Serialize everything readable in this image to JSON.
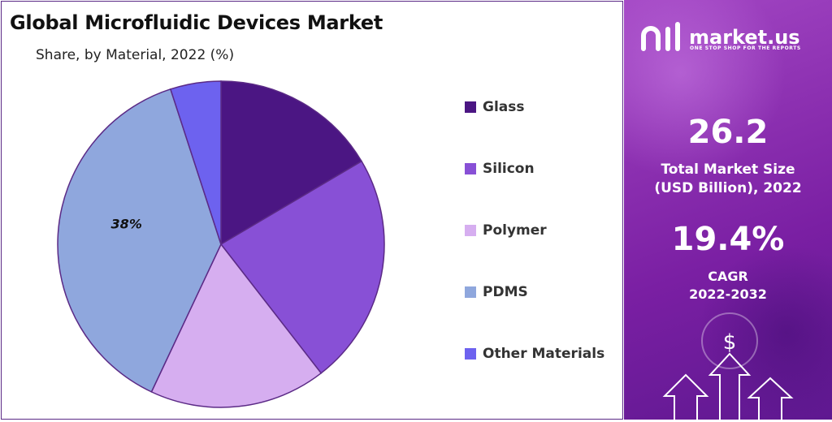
{
  "chart_data": {
    "type": "pie",
    "title": "Global Microfluidic Devices Market",
    "subtitle": "Share, by Material, 2022 (%)",
    "categories": [
      "Glass",
      "Silicon",
      "Polymer",
      "PDMS",
      "Other Materials"
    ],
    "values": [
      16.5,
      23.0,
      17.5,
      38.0,
      5.0
    ],
    "data_labels": [
      "",
      "",
      "",
      "38%",
      ""
    ],
    "colors": [
      "#4b1683",
      "#8850d6",
      "#d6aef0",
      "#8fa7dd",
      "#6d62ef"
    ],
    "legend_position": "right"
  },
  "brand": {
    "name": "market.us",
    "tagline": "ONE STOP SHOP FOR THE REPORTS"
  },
  "stats": {
    "market_size_value": "26.2",
    "market_size_label_1": "Total Market Size",
    "market_size_label_2": "(USD Billion), 2022",
    "cagr_value": "19.4%",
    "cagr_label_1": "CAGR",
    "cagr_label_2": "2022-2032"
  },
  "decor": {
    "dollar_symbol": "$",
    "arrow_icons": [
      "arrow-up-icon",
      "arrow-up-icon",
      "arrow-up-icon"
    ]
  }
}
